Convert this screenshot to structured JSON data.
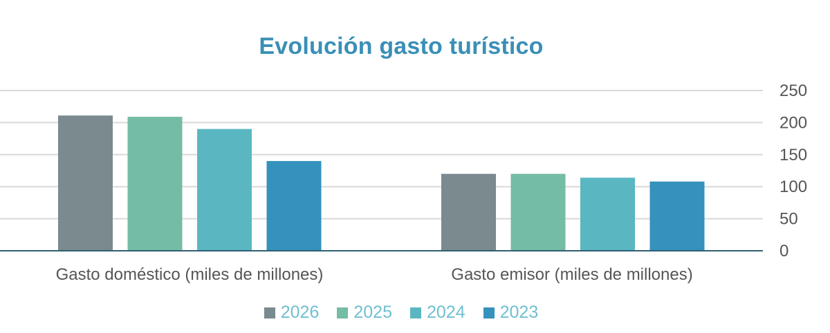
{
  "chart_data": {
    "type": "bar",
    "title": "Evolución gasto turístico",
    "xlabel": "",
    "ylabel": "",
    "categories": [
      "Gasto doméstico (miles de millones)",
      "Gasto emisor (miles de millones)"
    ],
    "series": [
      {
        "name": "2026",
        "values": [
          211,
          120
        ],
        "color": "#7a8a8e"
      },
      {
        "name": "2025",
        "values": [
          209,
          120
        ],
        "color": "#74bca5"
      },
      {
        "name": "2024",
        "values": [
          190,
          114
        ],
        "color": "#5ab7c2"
      },
      {
        "name": "2023",
        "values": [
          140,
          108
        ],
        "color": "#3492bc"
      }
    ],
    "ylim": [
      0,
      250
    ],
    "yticks": [
      "0",
      "50",
      "100",
      "150",
      "200",
      "250"
    ],
    "y_axis_side": "right",
    "grid": true,
    "legend_position": "bottom"
  }
}
